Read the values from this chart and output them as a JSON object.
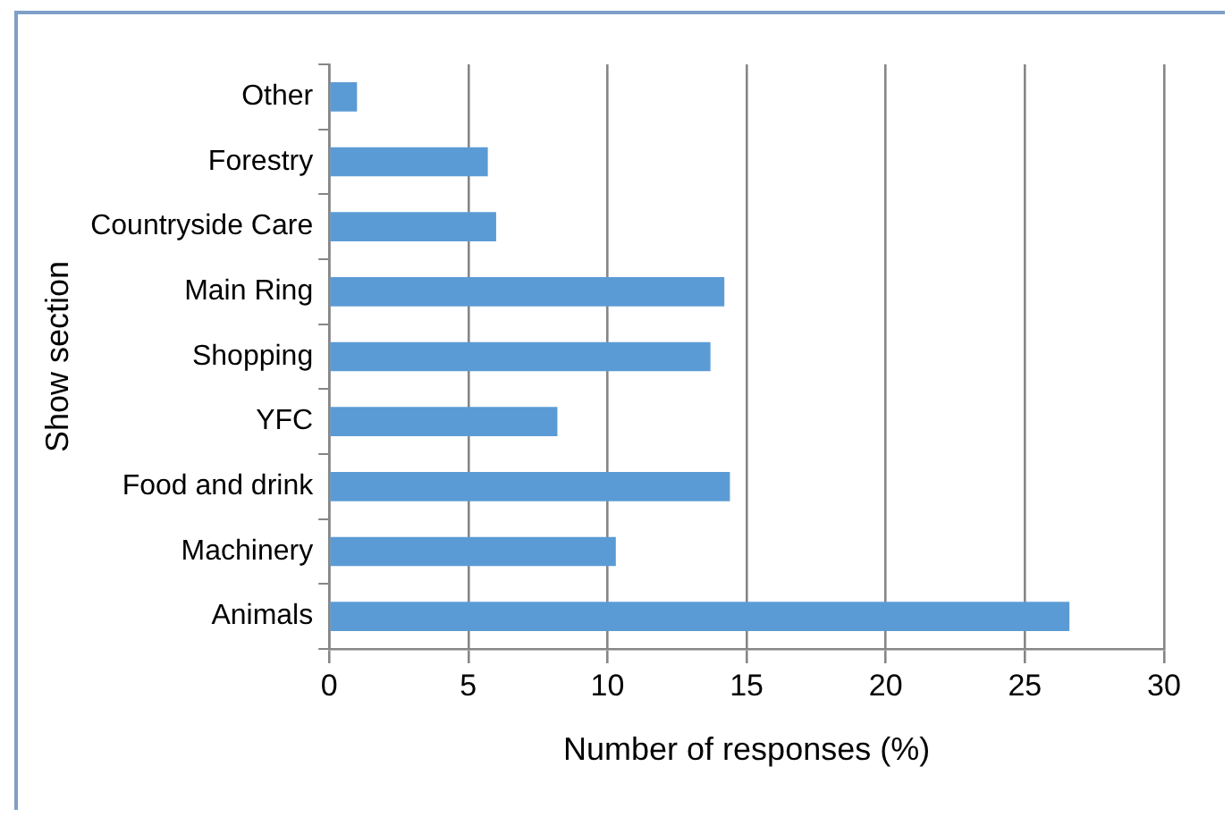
{
  "chart_data": {
    "type": "bar",
    "orientation": "horizontal",
    "xlabel": "Number of responses (%)",
    "ylabel": "Show section",
    "categories": [
      "Other",
      "Forestry",
      "Countryside Care",
      "Main Ring",
      "Shopping",
      "YFC",
      "Food and drink",
      "Machinery",
      "Animals"
    ],
    "values": [
      1.0,
      5.7,
      6.0,
      14.2,
      13.7,
      8.2,
      14.4,
      10.3,
      26.6
    ],
    "color": "#5b9bd5",
    "xlim": [
      0,
      30
    ],
    "xticks": [
      0,
      5,
      10,
      15,
      20,
      25,
      30
    ],
    "grid": "x",
    "legend": false
  }
}
